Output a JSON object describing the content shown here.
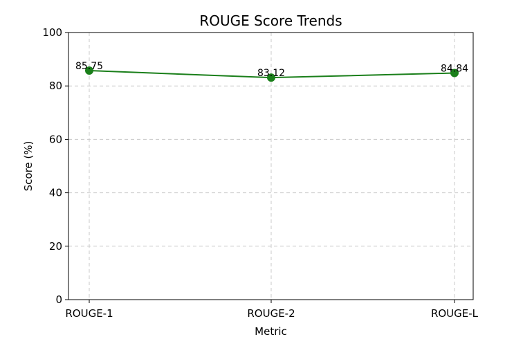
{
  "chart_data": {
    "type": "line",
    "title": "ROUGE Score Trends",
    "xlabel": "Metric",
    "ylabel": "Score (%)",
    "categories": [
      "ROUGE-1",
      "ROUGE-2",
      "ROUGE-L"
    ],
    "series": [
      {
        "values": [
          85.75,
          83.12,
          84.84
        ],
        "color": "#1a7f1a",
        "marker": "circle"
      }
    ],
    "data_labels": [
      "85.75",
      "83.12",
      "84.84"
    ],
    "ylim": [
      0,
      100
    ],
    "yticks": [
      0,
      20,
      40,
      60,
      80,
      100
    ],
    "grid": true,
    "grid_style": "dashed",
    "grid_color": "#c8c8c8",
    "axis_color": "#000000"
  }
}
